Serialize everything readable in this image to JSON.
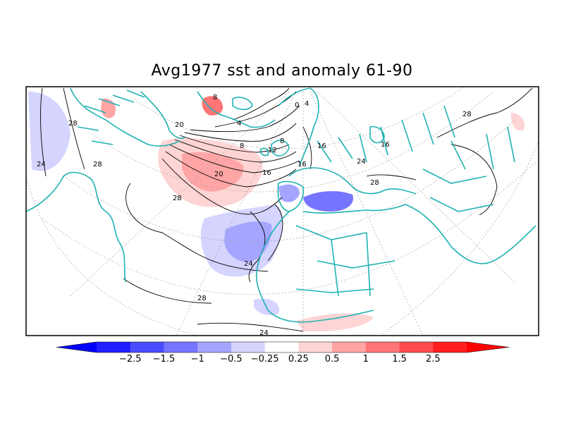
{
  "title": "Avg1977 sst and anomaly 61-90",
  "contour_labels": {
    "l0": "0",
    "l4a": "4",
    "l4b": "4",
    "l8a": "8",
    "l8b": "8",
    "l8c": "8",
    "l12": "12",
    "l16a": "16",
    "l16b": "16",
    "l16c": "16",
    "l16d": "16",
    "l20a": "20",
    "l20b": "20",
    "l24a": "24",
    "l24b": "24",
    "l24c": "24",
    "l24d": "24",
    "l28a": "28",
    "l28b": "28",
    "l28c": "28",
    "l28d": "28",
    "l28e": "28",
    "l28f": "28"
  },
  "colorbar": {
    "tick_labels": [
      "−2.5",
      "−1.5",
      "−1",
      "−0.5",
      "−0.25",
      "0.25",
      "0.5",
      "1",
      "1.5",
      "2.5"
    ],
    "bins": [
      {
        "color": "#1f1fff"
      },
      {
        "color": "#4c4cff"
      },
      {
        "color": "#7575ff"
      },
      {
        "color": "#a5a5ff"
      },
      {
        "color": "#d4d4ff"
      },
      {
        "color": "#ffffff"
      },
      {
        "color": "#ffd4d4"
      },
      {
        "color": "#ffa5a5"
      },
      {
        "color": "#ff7575"
      },
      {
        "color": "#ff4c4c"
      },
      {
        "color": "#ff1f1f"
      }
    ],
    "left_arrow_color": "#0000ff",
    "right_arrow_color": "#ff0000"
  },
  "colors": {
    "coastline": "#20b2b2",
    "contour": "#000000",
    "grid": "#999999",
    "frame": "#000000"
  }
}
